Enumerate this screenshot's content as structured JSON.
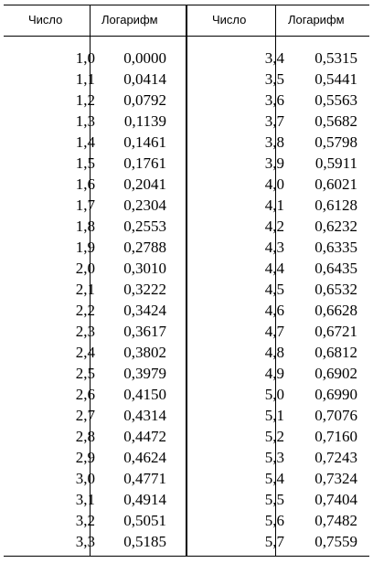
{
  "headers": {
    "number_left": "Число",
    "log_left": "Логарифм",
    "number_right": "Число",
    "log_right": "Логарифм"
  },
  "rows": [
    {
      "n1": "1,0",
      "l1": "0,0000",
      "n2": "3,4",
      "l2": "0,5315"
    },
    {
      "n1": "1,1",
      "l1": "0,0414",
      "n2": "3,5",
      "l2": "0,5441"
    },
    {
      "n1": "1,2",
      "l1": "0,0792",
      "n2": "3,6",
      "l2": "0,5563"
    },
    {
      "n1": "1,3",
      "l1": "0,1139",
      "n2": "3,7",
      "l2": "0,5682"
    },
    {
      "n1": "1,4",
      "l1": "0,1461",
      "n2": "3,8",
      "l2": "0,5798"
    },
    {
      "n1": "1,5",
      "l1": "0,1761",
      "n2": "3,9",
      "l2": "0,5911"
    },
    {
      "n1": "1,6",
      "l1": "0,2041",
      "n2": "4,0",
      "l2": "0,6021"
    },
    {
      "n1": "1,7",
      "l1": "0,2304",
      "n2": "4,1",
      "l2": "0,6128"
    },
    {
      "n1": "1,8",
      "l1": "0,2553",
      "n2": "4,2",
      "l2": "0,6232"
    },
    {
      "n1": "1,9",
      "l1": "0,2788",
      "n2": "4,3",
      "l2": "0,6335"
    },
    {
      "n1": "2,0",
      "l1": "0,3010",
      "n2": "4,4",
      "l2": "0,6435"
    },
    {
      "n1": "2,1",
      "l1": "0,3222",
      "n2": "4,5",
      "l2": "0,6532"
    },
    {
      "n1": "2,2",
      "l1": "0,3424",
      "n2": "4,6",
      "l2": "0,6628"
    },
    {
      "n1": "2,3",
      "l1": "0,3617",
      "n2": "4,7",
      "l2": "0,6721"
    },
    {
      "n1": "2,4",
      "l1": "0,3802",
      "n2": "4,8",
      "l2": "0,6812"
    },
    {
      "n1": "2,5",
      "l1": "0,3979",
      "n2": "4,9",
      "l2": "0,6902"
    },
    {
      "n1": "2,6",
      "l1": "0,4150",
      "n2": "5,0",
      "l2": "0,6990"
    },
    {
      "n1": "2,7",
      "l1": "0,4314",
      "n2": "5,1",
      "l2": "0,7076"
    },
    {
      "n1": "2,8",
      "l1": "0,4472",
      "n2": "5,2",
      "l2": "0,7160"
    },
    {
      "n1": "2,9",
      "l1": "0,4624",
      "n2": "5,3",
      "l2": "0,7243"
    },
    {
      "n1": "3,0",
      "l1": "0,4771",
      "n2": "5,4",
      "l2": "0,7324"
    },
    {
      "n1": "3,1",
      "l1": "0,4914",
      "n2": "5,5",
      "l2": "0,7404"
    },
    {
      "n1": "3,2",
      "l1": "0,5051",
      "n2": "5,6",
      "l2": "0,7482"
    },
    {
      "n1": "3,3",
      "l1": "0,5185",
      "n2": "5,7",
      "l2": "0,7559"
    }
  ]
}
